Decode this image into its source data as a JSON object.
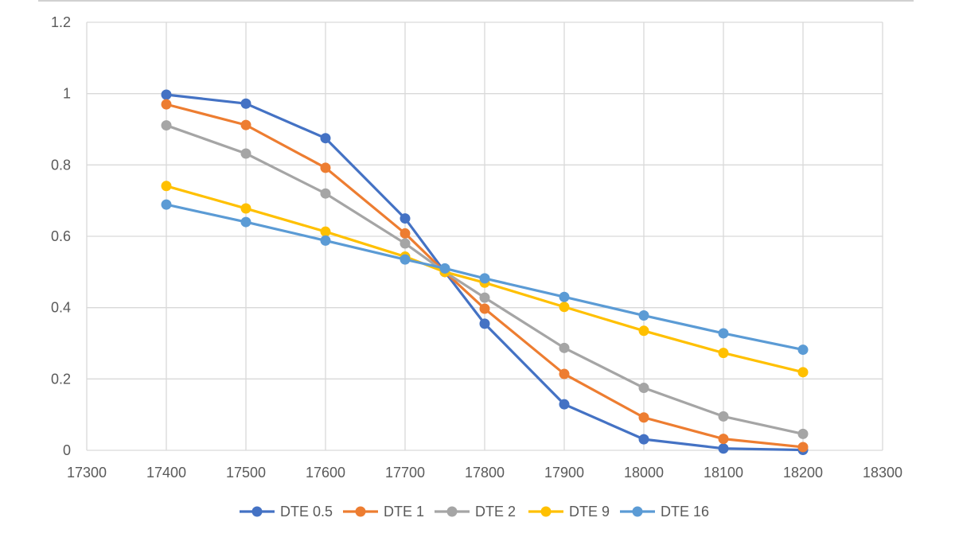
{
  "chart_data": {
    "type": "line",
    "title": "",
    "xlabel": "",
    "ylabel": "",
    "xlim": [
      17300,
      18300
    ],
    "ylim": [
      0,
      1.2
    ],
    "x_ticks": [
      "17300",
      "17400",
      "17500",
      "17600",
      "17700",
      "17800",
      "17900",
      "18000",
      "18100",
      "18200",
      "18300"
    ],
    "y_ticks": [
      "0",
      "0.2",
      "0.4",
      "0.6",
      "0.8",
      "1",
      "1.2"
    ],
    "grid": true,
    "legend_position": "bottom",
    "x": [
      17400,
      17500,
      17600,
      17700,
      17750,
      17800,
      17900,
      18000,
      18100,
      18200
    ],
    "series": [
      {
        "name": "DTE 0.5",
        "color": "#4472C4",
        "values": [
          0.997,
          0.972,
          0.875,
          0.65,
          0.5,
          0.355,
          0.129,
          0.031,
          0.005,
          0.001
        ]
      },
      {
        "name": "DTE 1",
        "color": "#ED7D31",
        "values": [
          0.97,
          0.912,
          0.792,
          0.608,
          0.5,
          0.397,
          0.214,
          0.092,
          0.032,
          0.009
        ]
      },
      {
        "name": "DTE 2",
        "color": "#A5A5A5",
        "values": [
          0.911,
          0.832,
          0.72,
          0.58,
          0.5,
          0.428,
          0.287,
          0.175,
          0.095,
          0.046
        ]
      },
      {
        "name": "DTE 9",
        "color": "#FFC000",
        "values": [
          0.741,
          0.678,
          0.613,
          0.543,
          0.5,
          0.47,
          0.402,
          0.335,
          0.273,
          0.219
        ]
      },
      {
        "name": "DTE 16",
        "color": "#5B9BD5",
        "values": [
          0.689,
          0.64,
          0.588,
          0.535,
          0.51,
          0.482,
          0.43,
          0.378,
          0.328,
          0.282
        ]
      }
    ]
  }
}
